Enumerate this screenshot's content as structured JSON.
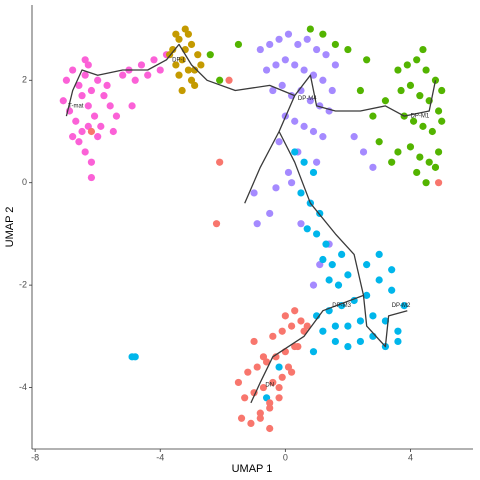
{
  "chart_data": {
    "type": "scatter",
    "x_label": "UMAP 1",
    "y_label": "UMAP 2",
    "xlim": [
      -8.1,
      6.0
    ],
    "ylim": [
      -5.2,
      3.47
    ],
    "xticks": [
      -8,
      -4,
      0,
      4
    ],
    "yticks": [
      -4,
      -2,
      0,
      2
    ],
    "grid": false,
    "series": [
      {
        "color": "#FB61D7",
        "x": [
          -7.0,
          -6.8,
          -6.6,
          -6.4,
          -6.2,
          -6.0,
          -5.8,
          -5.6,
          -5.4,
          -6.9,
          -6.7,
          -6.5,
          -6.3,
          -6.1,
          -5.9,
          -6.6,
          -6.4,
          -6.2,
          -6.0,
          -6.5,
          -6.3,
          -6.2,
          -5.2,
          -5.0,
          -4.8,
          -4.6,
          -4.4,
          -4.2,
          -4.0,
          -3.8,
          -7.1,
          -6.8,
          -5.7,
          -5.5,
          -4.9,
          -6.4,
          -6.3
        ],
        "y": [
          2.0,
          2.2,
          1.9,
          2.1,
          1.8,
          2.0,
          1.7,
          1.5,
          1.3,
          1.4,
          1.2,
          1.0,
          1.5,
          1.3,
          1.1,
          0.8,
          0.6,
          0.4,
          0.9,
          1.7,
          2.3,
          0.1,
          2.1,
          2.2,
          2.0,
          2.3,
          2.1,
          2.4,
          2.2,
          2.5,
          1.6,
          0.9,
          1.9,
          1.0,
          1.5,
          2.4,
          1.1
        ]
      },
      {
        "color": "#C49A00",
        "x": [
          -3.6,
          -3.4,
          -3.2,
          -3.0,
          -2.8,
          -3.5,
          -3.3,
          -3.1,
          -2.9,
          -3.7,
          -3.4,
          -3.2,
          -3.0,
          -2.7,
          -3.3,
          -3.1,
          -2.9,
          -3.5
        ],
        "y": [
          2.6,
          2.8,
          3.0,
          2.7,
          2.5,
          2.3,
          2.4,
          2.9,
          2.2,
          2.5,
          2.1,
          2.6,
          2.0,
          2.3,
          1.8,
          2.2,
          1.9,
          2.9
        ]
      },
      {
        "color": "#A58AFF",
        "x": [
          -0.8,
          -0.5,
          -0.2,
          0.1,
          0.4,
          0.7,
          1.0,
          1.3,
          1.6,
          -0.6,
          -0.3,
          0.0,
          0.3,
          0.6,
          0.9,
          1.2,
          1.5,
          -0.4,
          -0.1,
          0.2,
          0.5,
          0.8,
          1.1,
          1.4,
          0.0,
          0.3,
          0.6,
          0.9,
          1.2,
          -0.2,
          0.4,
          1.0,
          0.2,
          0.8,
          0.5,
          -0.5,
          -1.0,
          -0.9,
          2.2,
          2.5,
          2.8,
          1.4,
          1.1,
          0.9,
          -0.3,
          0.1
        ],
        "y": [
          2.6,
          2.7,
          2.8,
          2.9,
          2.7,
          2.8,
          2.6,
          2.5,
          2.3,
          2.2,
          2.3,
          2.4,
          2.3,
          2.2,
          2.1,
          2.0,
          1.8,
          1.8,
          1.9,
          1.7,
          1.8,
          1.6,
          1.5,
          1.4,
          1.3,
          1.2,
          1.1,
          1.0,
          0.9,
          0.8,
          0.6,
          0.4,
          0.0,
          -0.4,
          -0.8,
          -0.6,
          -0.2,
          -0.8,
          0.9,
          0.6,
          0.3,
          -1.2,
          -1.6,
          -2.0,
          -0.1,
          0.2
        ]
      },
      {
        "color": "#53B400",
        "x": [
          3.6,
          3.9,
          4.2,
          4.5,
          4.8,
          5.0,
          3.7,
          4.0,
          4.3,
          4.6,
          4.9,
          3.8,
          4.1,
          4.4,
          4.7,
          5.0,
          4.0,
          4.3,
          4.6,
          4.9,
          4.2,
          4.5,
          4.8,
          3.2,
          2.8,
          2.4,
          3.0,
          3.4,
          2.6,
          1.2,
          1.6,
          0.8,
          2.0,
          -1.5,
          -2.1,
          -2.4,
          3.6,
          4.4
        ],
        "y": [
          2.2,
          2.3,
          2.4,
          2.2,
          2.0,
          1.8,
          1.8,
          1.9,
          1.7,
          1.6,
          1.4,
          1.3,
          1.2,
          1.1,
          1.0,
          1.2,
          0.7,
          0.5,
          0.4,
          0.6,
          0.2,
          0.0,
          0.3,
          1.6,
          1.3,
          1.8,
          0.8,
          0.4,
          2.4,
          2.9,
          2.7,
          3.0,
          2.6,
          2.7,
          2.0,
          2.5,
          0.6,
          2.6
        ]
      },
      {
        "color": "#00B6EB",
        "x": [
          0.3,
          0.6,
          0.9,
          0.5,
          0.8,
          1.1,
          0.7,
          1.0,
          1.3,
          1.2,
          1.5,
          1.8,
          1.4,
          1.7,
          2.0,
          1.0,
          1.4,
          1.8,
          2.2,
          2.6,
          3.0,
          3.4,
          3.8,
          1.2,
          1.6,
          2.0,
          2.4,
          2.8,
          3.2,
          3.6,
          1.6,
          2.0,
          2.4,
          2.8,
          3.2,
          3.6,
          2.6,
          3.0,
          3.4,
          0.9,
          -0.2,
          -0.6,
          -4.9,
          -4.8
        ],
        "y": [
          0.6,
          0.4,
          0.2,
          -0.2,
          -0.4,
          -0.6,
          -0.9,
          -1.0,
          -1.2,
          -1.5,
          -1.6,
          -1.4,
          -1.9,
          -2.0,
          -1.8,
          -2.6,
          -2.5,
          -2.4,
          -2.3,
          -2.2,
          -1.9,
          -2.1,
          -2.4,
          -2.9,
          -2.8,
          -2.8,
          -2.7,
          -2.6,
          -2.7,
          -2.9,
          -3.1,
          -3.2,
          -3.1,
          -3.0,
          -3.2,
          -3.1,
          -1.6,
          -1.4,
          -1.7,
          -3.3,
          -3.6,
          -4.2,
          -3.4,
          -3.4
        ]
      },
      {
        "color": "#F8766D",
        "x": [
          -1.4,
          -1.1,
          -0.8,
          -0.5,
          -0.2,
          -1.3,
          -1.0,
          -0.7,
          -0.4,
          -0.1,
          0.2,
          -1.2,
          -0.9,
          -0.6,
          -0.3,
          0.0,
          0.3,
          -1.0,
          -0.7,
          -0.4,
          -0.1,
          0.2,
          0.5,
          -0.5,
          -0.2,
          0.1,
          0.4,
          0.7,
          0.0,
          0.3,
          0.6,
          -0.8,
          -0.5,
          -1.5,
          -2.2,
          -1.8,
          4.9,
          -6.2,
          -2.1
        ],
        "y": [
          -4.6,
          -4.7,
          -4.5,
          -4.3,
          -4.2,
          -4.2,
          -4.1,
          -4.0,
          -3.9,
          -3.8,
          -3.7,
          -3.7,
          -3.6,
          -3.5,
          -3.4,
          -3.3,
          -3.2,
          -3.1,
          -3.4,
          -3.0,
          -2.9,
          -2.8,
          -2.7,
          -4.4,
          -4.0,
          -3.6,
          -3.2,
          -2.8,
          -2.6,
          -2.5,
          -2.9,
          -4.6,
          -4.8,
          -3.9,
          -0.8,
          2.0,
          0.0,
          1.0,
          0.4
        ]
      }
    ],
    "trajectory": {
      "color": "#3a3a3a",
      "x": [
        -7.0,
        -6.8,
        -6.5,
        -6.0,
        -5.2,
        -4.4,
        -3.8,
        -3.4,
        -3.0,
        -2.5,
        -1.6,
        -0.5,
        0.3,
        0.8,
        1.0,
        1.6,
        2.4,
        3.2,
        3.8,
        4.6,
        4.8,
        null,
        0.3,
        -0.2,
        0.3,
        0.8,
        1.6,
        2.2,
        2.5,
        2.6,
        3.2,
        3.3,
        3.9,
        null,
        2.5,
        1.2,
        0.6,
        -0.4,
        -0.8,
        -1.1,
        null,
        -0.2,
        -0.8,
        -1.3
      ],
      "y": [
        1.3,
        1.8,
        2.2,
        2.1,
        2.2,
        2.2,
        2.4,
        2.7,
        2.3,
        2.0,
        1.8,
        1.9,
        1.7,
        2.1,
        1.5,
        1.4,
        1.4,
        1.5,
        1.3,
        1.4,
        2.0,
        null,
        1.7,
        1.0,
        0.4,
        -0.4,
        -1.0,
        -1.4,
        -2.2,
        -2.8,
        -3.2,
        -2.6,
        -2.5,
        null,
        -2.2,
        -2.5,
        -3.0,
        -3.4,
        -3.9,
        -4.3,
        null,
        1.0,
        0.3,
        -0.4
      ]
    },
    "annotations": [
      {
        "text": "T-mat",
        "x": -6.7,
        "y": 1.5
      },
      {
        "text": "DP-L",
        "x": -3.4,
        "y": 2.4
      },
      {
        "text": "DP-M4",
        "x": 0.7,
        "y": 1.65
      },
      {
        "text": "DP-M1",
        "x": 4.3,
        "y": 1.3
      },
      {
        "text": "DP-M3",
        "x": 1.8,
        "y": -2.4
      },
      {
        "text": "DP-M2",
        "x": 3.7,
        "y": -2.4
      },
      {
        "text": "DN",
        "x": -0.5,
        "y": -3.95
      }
    ]
  }
}
